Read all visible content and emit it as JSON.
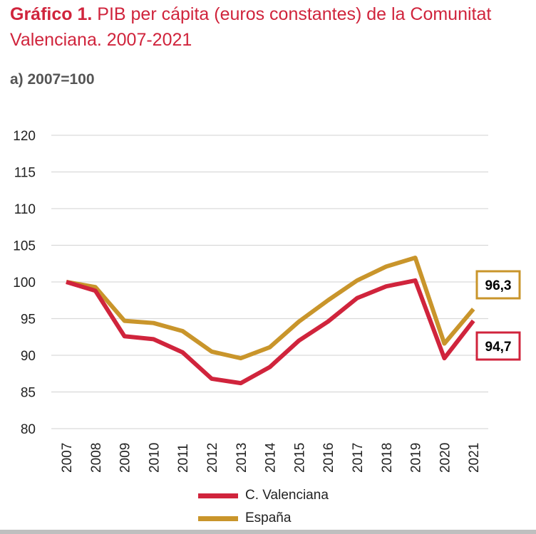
{
  "header": {
    "title_bold": "Gráfico 1.",
    "title_rest": " PIB per cápita (euros constantes) de la Comunitat Valenciana. 2007-2021",
    "subtitle": "a) 2007=100"
  },
  "chart_data": {
    "type": "line",
    "title": "PIB per cápita (euros constantes) de la Comunitat Valenciana. 2007-2021",
    "subtitle": "a) 2007=100",
    "xlabel": "",
    "ylabel": "",
    "ylim": [
      80,
      120
    ],
    "yticks": [
      80,
      85,
      90,
      95,
      100,
      105,
      110,
      115,
      120
    ],
    "grid": true,
    "legend_position": "bottom",
    "categories": [
      "2007",
      "2008",
      "2009",
      "2010",
      "2011",
      "2012",
      "2013",
      "2014",
      "2015",
      "2016",
      "2017",
      "2018",
      "2019",
      "2020",
      "2021"
    ],
    "series": [
      {
        "name": "C. Valenciana",
        "color": "#d0243c",
        "values": [
          100,
          98.8,
          92.6,
          92.2,
          90.4,
          86.8,
          86.2,
          88.4,
          92.0,
          94.6,
          97.8,
          99.4,
          100.2,
          89.6,
          94.7
        ],
        "end_label": "94,7"
      },
      {
        "name": "España",
        "color": "#c9952b",
        "values": [
          100,
          99.3,
          94.7,
          94.4,
          93.3,
          90.5,
          89.6,
          91.1,
          94.6,
          97.5,
          100.2,
          102.1,
          103.3,
          91.6,
          96.3
        ],
        "end_label": "96,3"
      }
    ]
  },
  "colors": {
    "title": "#d0243c",
    "grid": "#d9d9d9",
    "bottom_bar": "#bfbfbf"
  }
}
